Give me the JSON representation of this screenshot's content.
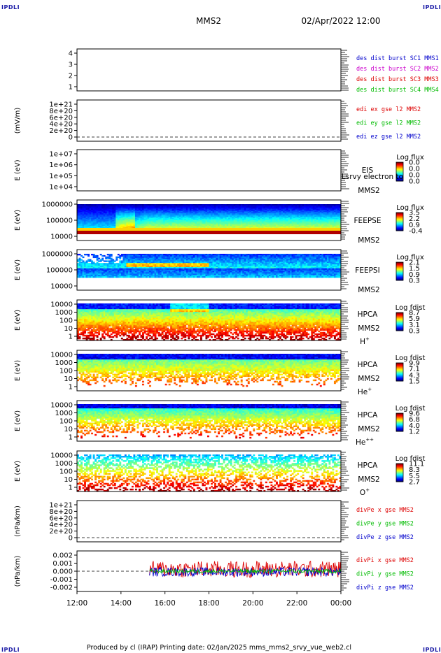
{
  "header": {
    "corner": "IPDLI",
    "title": "MMS2",
    "datetime": "02/Apr/2022 12:00"
  },
  "footer": {
    "text": "Produced by cl (IRAP)   Printing date: 02/Jan/2025   mms_mms2_srvy_vue_web2.cl"
  },
  "colors": {
    "blue": "#0000cc",
    "magenta": "#cc00cc",
    "red": "#dd0000",
    "green": "#00bb00",
    "deep_red": "#a00000"
  },
  "chart_data": [
    {
      "type": "line",
      "id": "dist-burst",
      "yticks": [
        "4",
        "3",
        "2",
        "1"
      ],
      "ylabel": "",
      "legend": [
        {
          "text": "des dist burst SC1 MMS1",
          "color": "blue"
        },
        {
          "text": "des dist burst SC2 MMS2",
          "color": "magenta"
        },
        {
          "text": "des dist burst SC3 MMS3",
          "color": "red"
        },
        {
          "text": "des dist burst SC4 MMS4",
          "color": "green"
        }
      ]
    },
    {
      "type": "line",
      "id": "edi-e",
      "yticks": [
        "1e+21",
        "8e+20",
        "6e+20",
        "4e+20",
        "2e+20",
        "0"
      ],
      "ylabel": "(mV/m)",
      "dashed_zero": true,
      "legend": [
        {
          "text": "edi ex gse l2 MMS2",
          "color": "red"
        },
        {
          "text": "edi ey gse l2 MMS2",
          "color": "green"
        },
        {
          "text": "edi ez gse l2 MMS2",
          "color": "blue"
        }
      ]
    },
    {
      "type": "heatmap",
      "id": "eis",
      "yticks": [
        "1e+07",
        "1e+06",
        "1e+05",
        "1e+04"
      ],
      "ylabel": "E (eV)",
      "instrument": "EIS",
      "overlay": "Lsrvy electron to",
      "spacecraft": "MMS2",
      "cbar_title": "Log flux",
      "cbar_ticks": [
        "0.0",
        "0.0",
        "0.0",
        "0.0"
      ],
      "empty": true
    },
    {
      "type": "heatmap",
      "id": "feepse",
      "yticks": [
        "1000000",
        "100000",
        "10000"
      ],
      "ylabel": "E (eV)",
      "instrument": "FEEPSE",
      "spacecraft": "MMS2",
      "cbar_title": "Log flux",
      "cbar_ticks": [
        "3.5",
        "2.2",
        "0.9",
        "-0.4"
      ]
    },
    {
      "type": "heatmap",
      "id": "feepsi",
      "yticks": [
        "1000000",
        "100000",
        "10000"
      ],
      "ylabel": "E (eV)",
      "instrument": "FEEPSI",
      "spacecraft": "MMS2",
      "cbar_title": "Log flux",
      "cbar_ticks": [
        "2.1",
        "1.5",
        "0.9",
        "0.3"
      ]
    },
    {
      "type": "heatmap",
      "id": "hpca-h",
      "yticks": [
        "10000",
        "1000",
        "100",
        "10",
        "1"
      ],
      "ylabel": "E (eV)",
      "instrument": "HPCA",
      "spacecraft": "MMS2",
      "species": "H",
      "charge": "+",
      "cbar_title": "Log fdist",
      "cbar_ticks": [
        "8.7",
        "5.9",
        "3.1",
        "0.3"
      ]
    },
    {
      "type": "heatmap",
      "id": "hpca-he",
      "yticks": [
        "10000",
        "1000",
        "100",
        "10",
        "1"
      ],
      "ylabel": "E (eV)",
      "instrument": "HPCA",
      "spacecraft": "MMS2",
      "species": "He",
      "charge": "+",
      "cbar_title": "Log fdist",
      "cbar_ticks": [
        "9.9",
        "7.1",
        "4.3",
        "1.5"
      ]
    },
    {
      "type": "heatmap",
      "id": "hpca-hepp",
      "yticks": [
        "10000",
        "1000",
        "100",
        "10",
        "1"
      ],
      "ylabel": "E (eV)",
      "instrument": "HPCA",
      "spacecraft": "MMS2",
      "species": "He",
      "charge": "++",
      "cbar_title": "Log fdist",
      "cbar_ticks": [
        "9.6",
        "6.8",
        "4.0",
        "1.2"
      ]
    },
    {
      "type": "heatmap",
      "id": "hpca-o",
      "yticks": [
        "10000",
        "1000",
        "100",
        "10",
        "1"
      ],
      "ylabel": "E (eV)",
      "instrument": "HPCA",
      "spacecraft": "MMS2",
      "species": "O",
      "charge": "+",
      "cbar_title": "Log fdist",
      "cbar_ticks": [
        "11.1",
        "8.3",
        "5.5",
        "2.7"
      ]
    },
    {
      "type": "line",
      "id": "divpe",
      "yticks": [
        "1e+21",
        "8e+20",
        "6e+20",
        "4e+20",
        "2e+20",
        "0"
      ],
      "ylabel": "(nPa/km)",
      "dashed_zero": true,
      "legend": [
        {
          "text": "divPe x gse MMS2",
          "color": "red"
        },
        {
          "text": "divPe y gse MMS2",
          "color": "green"
        },
        {
          "text": "divPe z gse MMS2",
          "color": "blue"
        }
      ]
    },
    {
      "type": "line",
      "id": "divpi",
      "yticks": [
        "0.002",
        "0.001",
        "0.000",
        "-0.001",
        "-0.002"
      ],
      "ylabel": "(nPa/km)",
      "ylim": [
        -0.0025,
        0.0025
      ],
      "data_start": "15:18",
      "dashed_zero": true,
      "legend": [
        {
          "text": "divPi x gse MMS2",
          "color": "red"
        },
        {
          "text": "divPi y gse MMS2",
          "color": "green"
        },
        {
          "text": "divPi z gse MMS2",
          "color": "blue"
        }
      ]
    }
  ],
  "xaxis": {
    "ticks": [
      "12:00",
      "14:00",
      "16:00",
      "18:00",
      "20:00",
      "22:00",
      "00:00"
    ]
  }
}
